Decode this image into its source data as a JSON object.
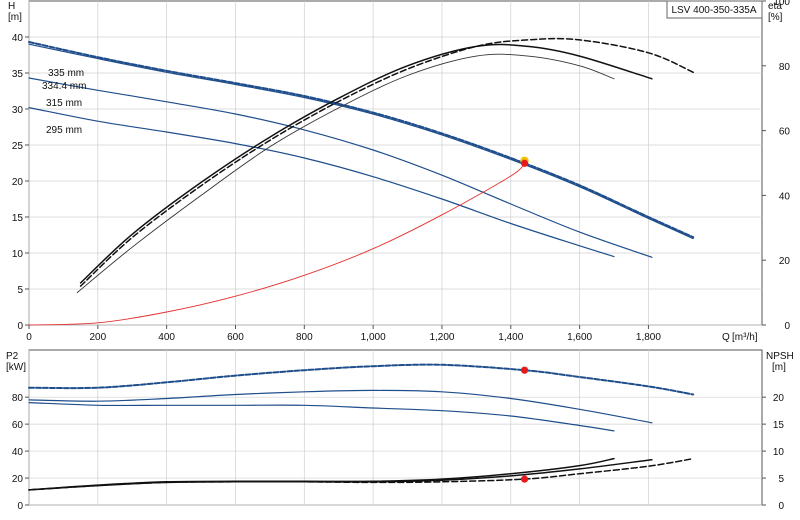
{
  "model": "LSV 400-350-335A",
  "colors": {
    "pump": "#1f4e8c",
    "eff": "#111111",
    "system": "#e53030",
    "duty": "#e51a1a",
    "duty_top": "#f2c400",
    "frame": "#555555"
  },
  "chart_data": [
    {
      "id": "head",
      "type": "line",
      "ylabel": "H",
      "yunit": "[m]",
      "y2label": "eta",
      "y2unit": "[%]",
      "xlabel": "Q",
      "xunit": "[m³/h]",
      "xlim": [
        0,
        2130
      ],
      "ylim": [
        0,
        45
      ],
      "y2lim": [
        0,
        100
      ],
      "xticks": [
        {
          "v": 0,
          "label": "0"
        },
        {
          "v": 200,
          "label": "200"
        },
        {
          "v": 400,
          "label": "400"
        },
        {
          "v": 600,
          "label": "600"
        },
        {
          "v": 800,
          "label": "800"
        },
        {
          "v": 1000,
          "label": "1,000"
        },
        {
          "v": 1200,
          "label": "1,200"
        },
        {
          "v": 1400,
          "label": "1,400"
        },
        {
          "v": 1600,
          "label": "1,600"
        },
        {
          "v": 1800,
          "label": "1,800"
        }
      ],
      "yticks": [
        {
          "v": 0,
          "label": "0"
        },
        {
          "v": 5,
          "label": "5"
        },
        {
          "v": 10,
          "label": "10"
        },
        {
          "v": 15,
          "label": "15"
        },
        {
          "v": 20,
          "label": "20"
        },
        {
          "v": 25,
          "label": "25"
        },
        {
          "v": 30,
          "label": "30"
        },
        {
          "v": 35,
          "label": "35"
        },
        {
          "v": 40,
          "label": "40"
        }
      ],
      "y2ticks": [
        {
          "v": 0,
          "label": "0"
        },
        {
          "v": 20,
          "label": "20"
        },
        {
          "v": 40,
          "label": "40"
        },
        {
          "v": 60,
          "label": "60"
        },
        {
          "v": 80,
          "label": "80"
        },
        {
          "v": 100,
          "label": "100"
        }
      ],
      "series": [
        {
          "name": "335 mm",
          "axis": "left",
          "style": "dashed-blue",
          "x": [
            0,
            200,
            400,
            600,
            800,
            1000,
            1200,
            1400,
            1600,
            1800,
            1930
          ],
          "y": [
            39.3,
            37.2,
            35.3,
            33.6,
            31.8,
            29.5,
            26.6,
            23.2,
            19.4,
            15.0,
            12.2
          ]
        },
        {
          "name": "334.4 mm",
          "axis": "left",
          "style": "solid-blue",
          "x": [
            0,
            200,
            400,
            600,
            800,
            1000,
            1200,
            1400,
            1600,
            1800,
            1930
          ],
          "y": [
            39.0,
            37.0,
            35.1,
            33.4,
            31.6,
            29.3,
            26.4,
            23.0,
            19.2,
            14.8,
            12.0
          ]
        },
        {
          "name": "315 mm",
          "axis": "left",
          "style": "solid-blue",
          "x": [
            0,
            200,
            400,
            600,
            800,
            1000,
            1200,
            1400,
            1600,
            1810
          ],
          "y": [
            34.3,
            32.6,
            31.0,
            29.3,
            27.1,
            24.3,
            20.8,
            16.8,
            12.9,
            9.4
          ]
        },
        {
          "name": "295 mm",
          "axis": "left",
          "style": "solid-blue",
          "x": [
            0,
            200,
            400,
            600,
            800,
            1000,
            1200,
            1400,
            1600,
            1700
          ],
          "y": [
            30.2,
            28.3,
            26.8,
            25.2,
            23.2,
            20.6,
            17.5,
            14.1,
            11.0,
            9.5
          ]
        },
        {
          "name": "",
          "axis": "left",
          "style": "system-red",
          "x": [
            0,
            200,
            400,
            600,
            800,
            1000,
            1200,
            1400,
            1440
          ],
          "y": [
            0,
            0.3,
            1.8,
            4.0,
            6.9,
            10.6,
            15.3,
            20.7,
            22.5
          ]
        },
        {
          "name": "",
          "axis": "right",
          "style": "dashed-black",
          "x": [
            150,
            300,
            500,
            700,
            900,
            1100,
            1300,
            1450,
            1600,
            1800,
            1930
          ],
          "y": [
            12,
            27,
            43,
            57,
            69,
            79,
            86,
            88,
            88,
            84,
            78
          ]
        },
        {
          "name": "",
          "axis": "right",
          "style": "solid-black",
          "x": [
            150,
            300,
            500,
            700,
            900,
            1100,
            1300,
            1450,
            1600,
            1810
          ],
          "y": [
            13,
            28,
            44,
            58,
            70,
            80,
            86,
            86,
            83,
            76
          ]
        },
        {
          "name": "",
          "axis": "right",
          "style": "thin-black",
          "x": [
            140,
            300,
            500,
            700,
            900,
            1100,
            1300,
            1450,
            1600,
            1700
          ],
          "y": [
            10,
            24,
            40,
            55,
            67,
            77,
            83,
            83,
            80,
            76
          ]
        }
      ],
      "duty_point": {
        "x": 1440,
        "y": 22.6
      }
    },
    {
      "id": "power",
      "type": "line",
      "ylabel": "P2",
      "yunit": "[kW]",
      "y2label": "NPSH",
      "y2unit": "[m]",
      "xlim": [
        0,
        2130
      ],
      "ylim": [
        0,
        115
      ],
      "y2lim": [
        0,
        28.75
      ],
      "yticks": [
        {
          "v": 0,
          "label": "0"
        },
        {
          "v": 20,
          "label": "20"
        },
        {
          "v": 40,
          "label": "40"
        },
        {
          "v": 60,
          "label": "60"
        },
        {
          "v": 80,
          "label": "80"
        }
      ],
      "y2ticks": [
        {
          "v": 0,
          "label": "0"
        },
        {
          "v": 5,
          "label": "5"
        },
        {
          "v": 10,
          "label": "10"
        },
        {
          "v": 15,
          "label": "15"
        },
        {
          "v": 20,
          "label": "20"
        }
      ],
      "series": [
        {
          "name": "",
          "axis": "left",
          "style": "dashed-blue",
          "x": [
            0,
            200,
            400,
            600,
            800,
            1000,
            1200,
            1440,
            1600,
            1800,
            1930
          ],
          "y": [
            87,
            87,
            91,
            96,
            100,
            103,
            104,
            100,
            95,
            88,
            82
          ]
        },
        {
          "name": "",
          "axis": "left",
          "style": "solid-blue",
          "x": [
            0,
            200,
            400,
            600,
            800,
            1000,
            1200,
            1400,
            1600,
            1810
          ],
          "y": [
            78,
            77,
            79,
            82,
            84,
            85,
            84,
            79,
            71,
            61
          ]
        },
        {
          "name": "",
          "axis": "left",
          "style": "solid-blue",
          "x": [
            0,
            200,
            400,
            600,
            800,
            1000,
            1200,
            1400,
            1600,
            1700
          ],
          "y": [
            76,
            74,
            74,
            74,
            74,
            72,
            70,
            66,
            59,
            55
          ]
        },
        {
          "name": "",
          "axis": "right",
          "style": "dashed-black",
          "x": [
            0,
            200,
            400,
            600,
            800,
            1000,
            1200,
            1440,
            1600,
            1800,
            1930
          ],
          "y": [
            2.8,
            3.6,
            4.2,
            4.3,
            4.3,
            4.2,
            4.3,
            4.8,
            5.8,
            7.2,
            8.6
          ]
        },
        {
          "name": "",
          "axis": "right",
          "style": "solid-black",
          "x": [
            0,
            200,
            400,
            600,
            800,
            1000,
            1200,
            1400,
            1600,
            1810
          ],
          "y": [
            2.8,
            3.6,
            4.2,
            4.3,
            4.3,
            4.3,
            4.6,
            5.4,
            6.7,
            8.4
          ]
        },
        {
          "name": "",
          "axis": "right",
          "style": "solid-black",
          "x": [
            0,
            200,
            400,
            600,
            800,
            1000,
            1200,
            1400,
            1600,
            1700
          ],
          "y": [
            2.8,
            3.7,
            4.3,
            4.4,
            4.4,
            4.4,
            4.8,
            5.8,
            7.3,
            8.6
          ]
        }
      ],
      "duty_points": [
        {
          "axis": "left",
          "x": 1440,
          "y": 100
        },
        {
          "axis": "right",
          "x": 1440,
          "y": 4.8
        }
      ]
    }
  ]
}
